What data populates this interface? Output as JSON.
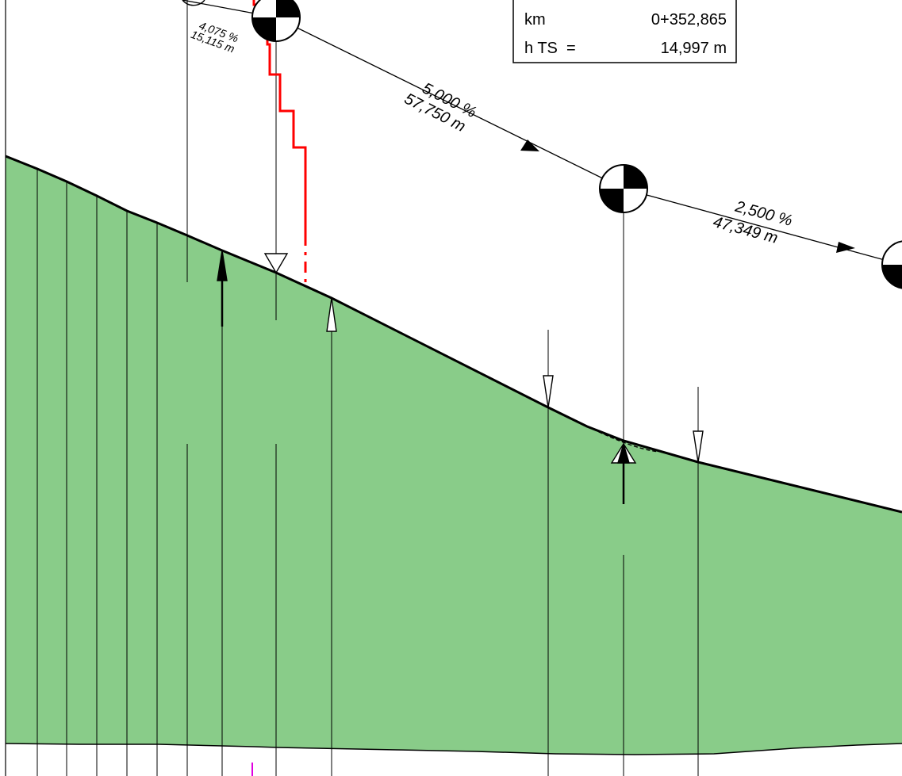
{
  "info_box": {
    "km_label": "km",
    "km_value": "0+352,865",
    "h_label": "h TS  =",
    "h_value": "14,997 m"
  },
  "grades": [
    {
      "id": "grade-1",
      "percent": "4,075 %",
      "length": "15,115 m"
    },
    {
      "id": "grade-2",
      "percent": "5,000 %",
      "length": "57,750 m"
    },
    {
      "id": "grade-3",
      "percent": "2,500 %",
      "length": "47,349 m"
    }
  ],
  "colors": {
    "ground_fill": "#89cc89",
    "line": "#000000",
    "red_line": "#ff0000",
    "magenta_marker": "#e000e0"
  }
}
